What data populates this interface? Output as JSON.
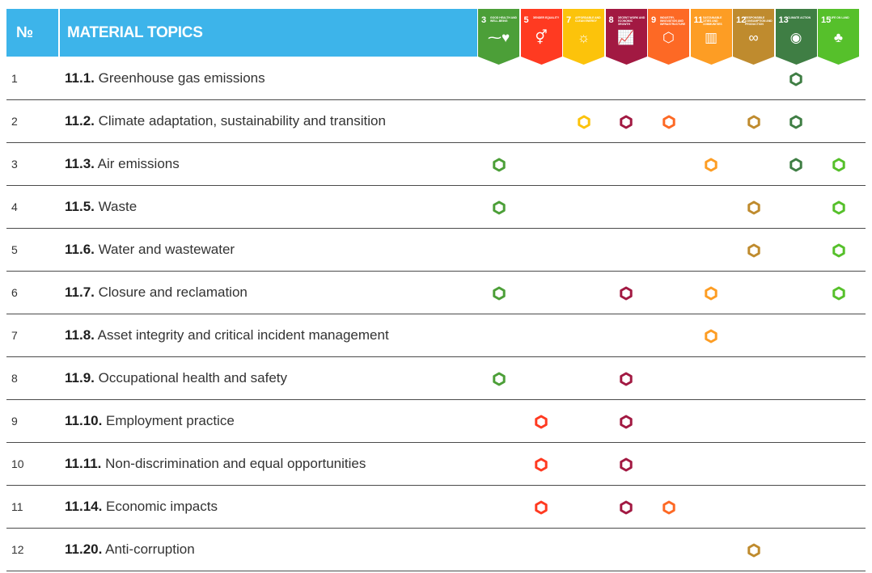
{
  "header": {
    "number_label": "№",
    "topics_label": "MATERIAL TOPICS"
  },
  "sdgs": [
    {
      "id": "3",
      "title": "Good health and well-being",
      "color": "#4c9f38",
      "icon": "heartbeat-icon",
      "glyph": "⁓♥"
    },
    {
      "id": "5",
      "title": "Gender equality",
      "color": "#ff3a21",
      "icon": "gender-equality-icon",
      "glyph": "⚥"
    },
    {
      "id": "7",
      "title": "Affordable and clean energy",
      "color": "#fcc30b",
      "icon": "sun-icon",
      "glyph": "☼"
    },
    {
      "id": "8",
      "title": "Decent work and economic growth",
      "color": "#a21942",
      "icon": "growth-chart-icon",
      "glyph": "📈"
    },
    {
      "id": "9",
      "title": "Industry, innovation and infrastructure",
      "color": "#fd6925",
      "icon": "cubes-icon",
      "glyph": "⬡"
    },
    {
      "id": "11",
      "title": "Sustainable cities and communities",
      "color": "#fd9d24",
      "icon": "city-icon",
      "glyph": "▥"
    },
    {
      "id": "12",
      "title": "Responsible consumption and production",
      "color": "#bf8b2e",
      "icon": "infinity-icon",
      "glyph": "∞"
    },
    {
      "id": "13",
      "title": "Climate action",
      "color": "#3f7e44",
      "icon": "eye-globe-icon",
      "glyph": "◉"
    },
    {
      "id": "15",
      "title": "Life on land",
      "color": "#56c02b",
      "icon": "tree-icon",
      "glyph": "♣"
    }
  ],
  "rows": [
    {
      "num": "1",
      "code": "11.1.",
      "label": " Greenhouse gas emissions",
      "marks": [
        "13"
      ]
    },
    {
      "num": "2",
      "code": "11.2.",
      "label": " Climate adaptation, sustainability and transition",
      "marks": [
        "7",
        "8",
        "9",
        "12",
        "13"
      ]
    },
    {
      "num": "3",
      "code": "11.3.",
      "label": " Air emissions",
      "marks": [
        "3",
        "11",
        "13",
        "15"
      ]
    },
    {
      "num": "4",
      "code": "11.5.",
      "label": " Waste",
      "marks": [
        "3",
        "12",
        "15"
      ]
    },
    {
      "num": "5",
      "code": "11.6.",
      "label": " Water and wastewater",
      "marks": [
        "12",
        "15"
      ]
    },
    {
      "num": "6",
      "code": "11.7.",
      "label": " Closure and reclamation",
      "marks": [
        "3",
        "8",
        "11",
        "15"
      ]
    },
    {
      "num": "7",
      "code": "11.8.",
      "label": " Asset integrity and critical incident management",
      "marks": [
        "11"
      ]
    },
    {
      "num": "8",
      "code": "11.9.",
      "label": " Occupational health and safety",
      "marks": [
        "3",
        "8"
      ]
    },
    {
      "num": "9",
      "code": "11.10.",
      "label": " Employment practice",
      "marks": [
        "5",
        "8"
      ]
    },
    {
      "num": "10",
      "code": "11.11.",
      "label": " Non-discrimination and equal opportunities",
      "marks": [
        "5",
        "8"
      ]
    },
    {
      "num": "11",
      "code": "11.14.",
      "label": " Economic impacts",
      "marks": [
        "5",
        "8",
        "9"
      ]
    },
    {
      "num": "12",
      "code": "11.20.",
      "label": " Anti-corruption",
      "marks": [
        "12"
      ]
    }
  ]
}
